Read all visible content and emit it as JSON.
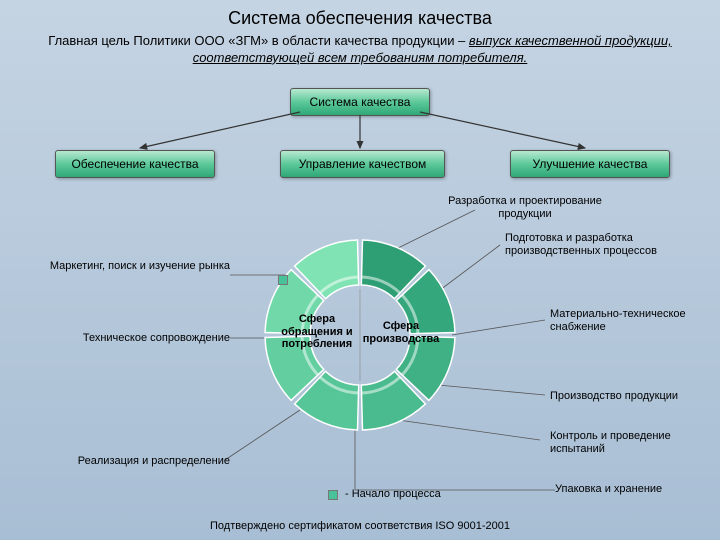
{
  "title": "Система обеспечения качества",
  "subtitle_plain": "Главная цель Политики ООО «ЗГМ» в области качества продукции – ",
  "subtitle_italic": "выпуск качественной продукции, соответствующей всем требованиям потребителя.",
  "boxes": {
    "system": "Система качества",
    "provision": "Обеспечение качества",
    "management": "Управление качеством",
    "improvement": "Улучшение качества"
  },
  "donut": {
    "type": "donut",
    "sectors": 8,
    "outer_r": 95,
    "inner_r": 50,
    "gap_deg": 3,
    "colors_outer": [
      "#2e9e74",
      "#35a77c",
      "#3fb185",
      "#4abb8e",
      "#56c597",
      "#63cfa0",
      "#71d9a9",
      "#80e3b3"
    ],
    "stroke": "#ffffff",
    "center_left": "Сфера обращения и потребления",
    "center_right": "Сфера производства"
  },
  "labels": {
    "marketing": "Маркетинг, поиск и изучение рынка",
    "tech_support": "Техническое сопровождение",
    "realization": "Реализация и распределение",
    "design": "Разработка и проектирование продукции",
    "preparation": "Подготовка и разработка производственных процессов",
    "supply": "Материально-техническое снабжение",
    "production": "Производство продукции",
    "control": "Контроль и проведение испытаний",
    "packaging": "Упаковка и хранение",
    "legend": "- Начало процесса"
  },
  "footer": "Подтверждено сертификатом соответствия ISO 9001-2001",
  "style": {
    "bg_top": "#c5d4e3",
    "bg_bottom": "#a8bed4",
    "box_grad_top": "#b8e8d0",
    "box_grad_bottom": "#2fa776",
    "title_fontsize": 18,
    "label_fontsize": 11
  }
}
